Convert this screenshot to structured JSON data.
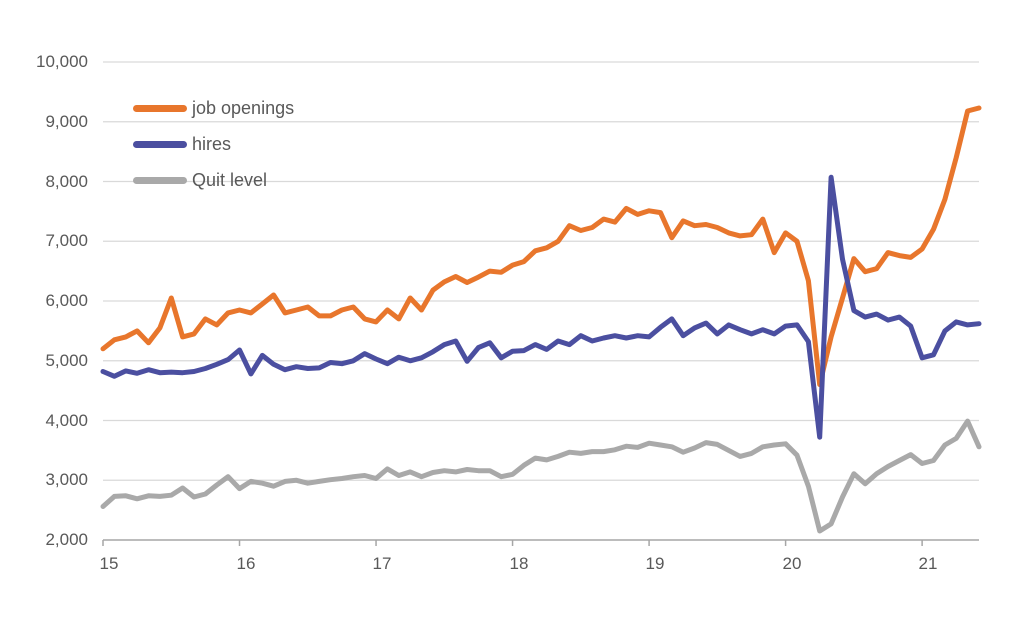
{
  "chart_data": {
    "type": "line",
    "title": "",
    "legend_position": "top-left-inside",
    "grid": true,
    "grid_color": "#d9d9d9",
    "axis_color": "#a6a6a6",
    "label_color": "#595959",
    "y_tick_labels": [
      "10,000",
      "9,000",
      "8,000",
      "7,000",
      "6,000",
      "5,000",
      "4,000",
      "3,000",
      "2,000"
    ],
    "y_ticks": [
      10000,
      9000,
      8000,
      7000,
      6000,
      5000,
      4000,
      3000,
      2000
    ],
    "ylim": [
      2000,
      10000
    ],
    "x_tick_labels": [
      "15",
      "16",
      "17",
      "18",
      "19",
      "20",
      "21"
    ],
    "x_frequency": "monthly",
    "points_per_year": 12,
    "series": [
      {
        "name": "job openings",
        "color": "#e8762c",
        "values": [
          5200,
          5350,
          5400,
          5500,
          5300,
          5550,
          6050,
          5400,
          5450,
          5700,
          5600,
          5800,
          5850,
          5800,
          5950,
          6100,
          5800,
          5850,
          5900,
          5750,
          5750,
          5850,
          5900,
          5700,
          5650,
          5850,
          5700,
          6050,
          5850,
          6180,
          6320,
          6410,
          6310,
          6400,
          6500,
          6480,
          6600,
          6660,
          6840,
          6890,
          7000,
          7260,
          7180,
          7230,
          7370,
          7320,
          7550,
          7450,
          7510,
          7480,
          7060,
          7340,
          7260,
          7280,
          7230,
          7140,
          7090,
          7110,
          7370,
          6810,
          7140,
          7000,
          6340,
          4600,
          5400,
          6050,
          6710,
          6490,
          6540,
          6810,
          6760,
          6730,
          6870,
          7200,
          7700,
          8400,
          9180,
          9230
        ]
      },
      {
        "name": "hires",
        "color": "#4b4fa0",
        "values": [
          4820,
          4740,
          4830,
          4790,
          4850,
          4800,
          4810,
          4800,
          4820,
          4870,
          4940,
          5020,
          5180,
          4780,
          5090,
          4940,
          4850,
          4900,
          4870,
          4880,
          4970,
          4950,
          5000,
          5120,
          5030,
          4950,
          5060,
          5000,
          5050,
          5150,
          5270,
          5330,
          4990,
          5220,
          5300,
          5050,
          5160,
          5170,
          5270,
          5190,
          5330,
          5270,
          5420,
          5330,
          5380,
          5420,
          5380,
          5420,
          5400,
          5560,
          5700,
          5420,
          5550,
          5630,
          5450,
          5600,
          5520,
          5450,
          5520,
          5450,
          5580,
          5600,
          5320,
          3720,
          8070,
          6700,
          5840,
          5730,
          5780,
          5680,
          5730,
          5580,
          5050,
          5100,
          5500,
          5650,
          5600,
          5620
        ]
      },
      {
        "name": "Quit level",
        "color": "#a9a9a9",
        "values": [
          2560,
          2730,
          2740,
          2690,
          2740,
          2730,
          2750,
          2870,
          2720,
          2770,
          2920,
          3060,
          2860,
          2980,
          2950,
          2900,
          2980,
          3000,
          2950,
          2980,
          3010,
          3030,
          3060,
          3080,
          3030,
          3190,
          3080,
          3140,
          3060,
          3130,
          3160,
          3140,
          3180,
          3160,
          3160,
          3060,
          3100,
          3250,
          3370,
          3340,
          3400,
          3470,
          3450,
          3480,
          3480,
          3510,
          3570,
          3550,
          3620,
          3590,
          3560,
          3470,
          3540,
          3630,
          3600,
          3500,
          3400,
          3450,
          3560,
          3590,
          3610,
          3420,
          2900,
          2150,
          2270,
          2720,
          3110,
          2940,
          3110,
          3230,
          3330,
          3430,
          3280,
          3330,
          3590,
          3700,
          3990,
          3560
        ]
      }
    ]
  }
}
